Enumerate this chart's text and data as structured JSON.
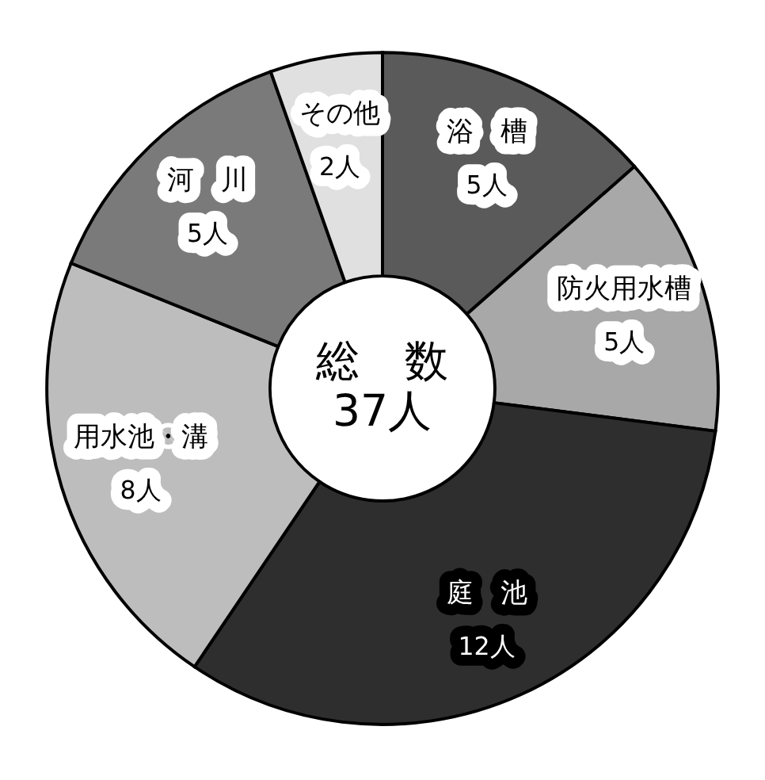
{
  "chart_data": {
    "type": "donut",
    "categories": [
      "浴　槽",
      "防火用水槽",
      "庭　池",
      "用水池・溝",
      "河　川",
      "その他"
    ],
    "values": [
      5,
      5,
      12,
      8,
      5,
      2
    ],
    "value_labels": [
      "5人",
      "5人",
      "12人",
      "8人",
      "5人",
      "2人"
    ],
    "colors": [
      "#5a5a5a",
      "#a8a8a8",
      "#2e2e2e",
      "#bdbdbd",
      "#7a7a7a",
      "#e0e0e0"
    ],
    "annotations": [
      "総　数",
      "37人"
    ],
    "legend": false
  }
}
